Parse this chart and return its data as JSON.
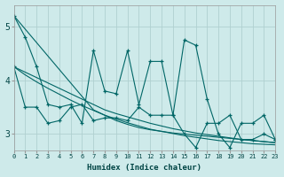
{
  "xlabel": "Humidex (Indice chaleur)",
  "bg_color": "#ceeaea",
  "grid_color": "#b0d0d0",
  "line_color": "#006666",
  "xlim": [
    0,
    23
  ],
  "ylim": [
    2.7,
    5.4
  ],
  "yticks": [
    3,
    4,
    5
  ],
  "xticks": [
    0,
    1,
    2,
    3,
    4,
    5,
    6,
    7,
    8,
    9,
    10,
    11,
    12,
    13,
    14,
    15,
    16,
    17,
    18,
    19,
    20,
    21,
    22,
    23
  ],
  "series_main": [
    5.2,
    4.8,
    4.25,
    3.55,
    3.5,
    3.55,
    3.2,
    4.55,
    3.8,
    3.75,
    4.55,
    3.55,
    4.35,
    4.35,
    3.35,
    4.75,
    4.65,
    3.65,
    3.0,
    2.75,
    3.2,
    3.2,
    3.35,
    2.9
  ],
  "series_zigzag": [
    4.25,
    3.5,
    3.5,
    3.2,
    3.25,
    3.5,
    3.55,
    3.25,
    3.3,
    3.3,
    3.25,
    3.5,
    3.35,
    3.35,
    3.35,
    3.0,
    2.75,
    3.2,
    3.2,
    3.35,
    2.9,
    2.9,
    3.0,
    2.9
  ],
  "linear1": [
    5.2,
    4.95,
    4.7,
    4.45,
    4.2,
    3.95,
    3.7,
    3.45,
    3.35,
    3.25,
    3.18,
    3.12,
    3.08,
    3.05,
    3.02,
    3.0,
    2.98,
    2.96,
    2.94,
    2.92,
    2.9,
    2.88,
    2.86,
    2.84
  ],
  "linear2": [
    4.25,
    4.15,
    4.05,
    3.95,
    3.85,
    3.75,
    3.65,
    3.55,
    3.45,
    3.38,
    3.32,
    3.26,
    3.2,
    3.15,
    3.1,
    3.06,
    3.02,
    2.99,
    2.96,
    2.93,
    2.9,
    2.88,
    2.86,
    2.84
  ],
  "linear3": [
    4.25,
    4.1,
    3.97,
    3.85,
    3.74,
    3.63,
    3.53,
    3.44,
    3.35,
    3.28,
    3.21,
    3.15,
    3.09,
    3.05,
    3.01,
    2.97,
    2.94,
    2.91,
    2.88,
    2.86,
    2.84,
    2.82,
    2.81,
    2.8
  ]
}
